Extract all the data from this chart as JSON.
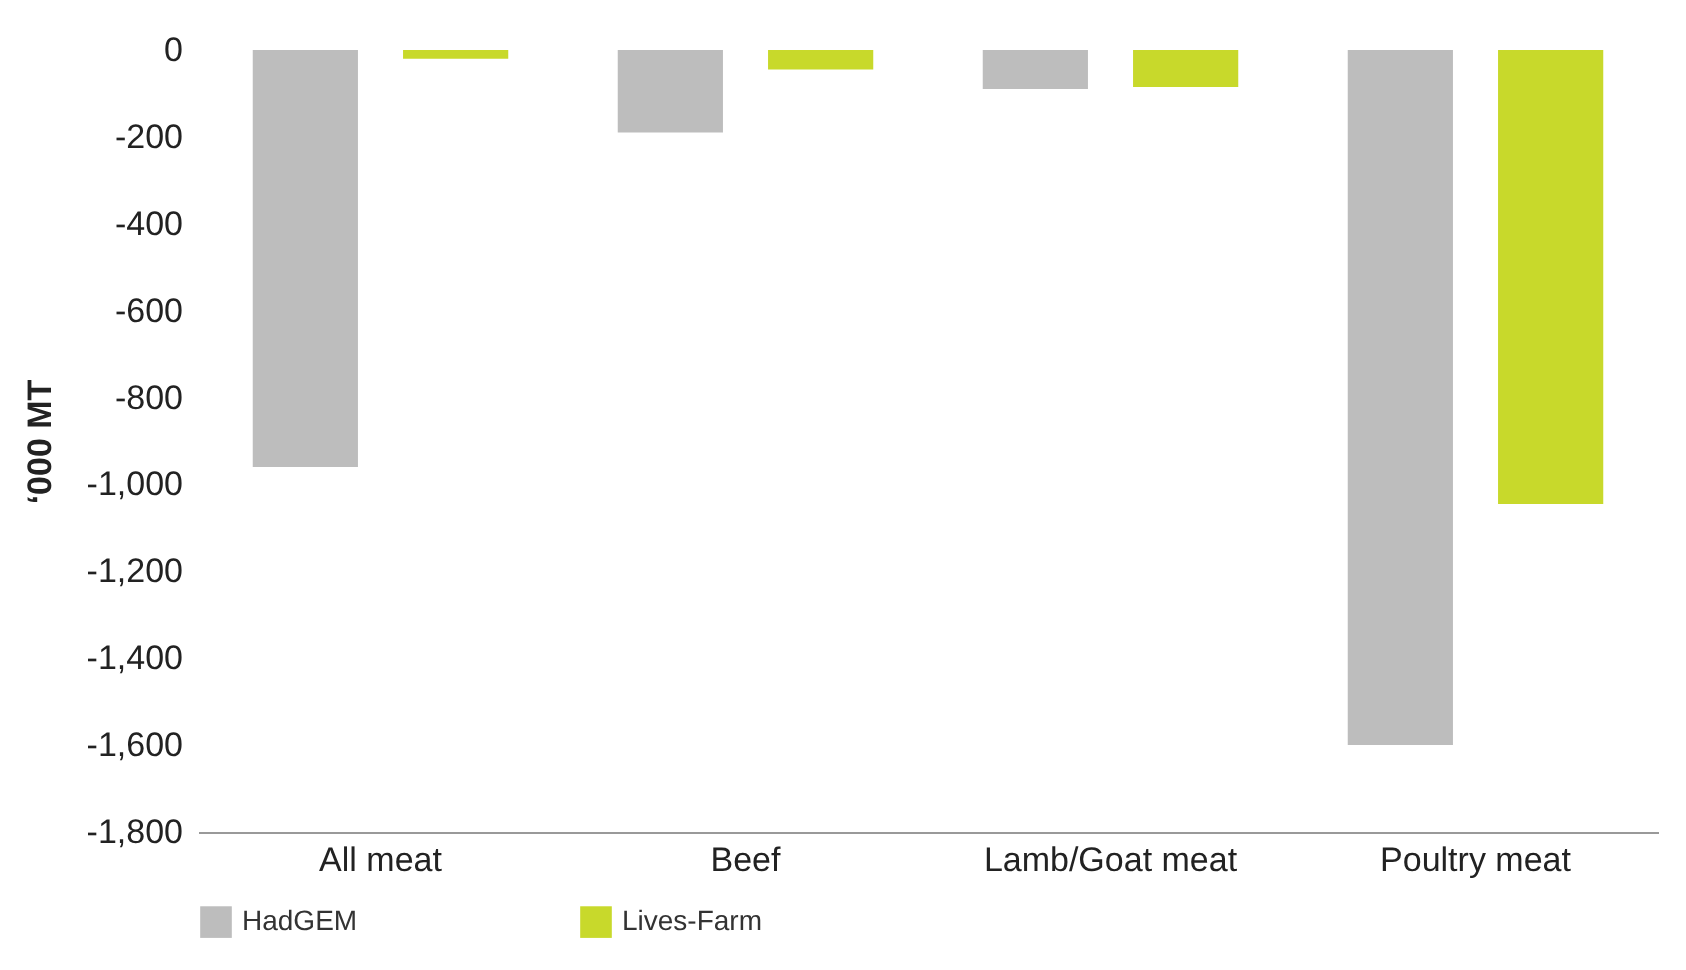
{
  "chart_data": {
    "type": "bar",
    "ylabel": "‘000 MT",
    "categories": [
      "All meat",
      "Beef",
      "Lamb/Goat meat",
      "Poultry meat"
    ],
    "series": [
      {
        "name": "HadGEM",
        "color": "#bdbdbd",
        "values": [
          -960,
          -190,
          -90,
          -1600
        ]
      },
      {
        "name": "Lives-Farm",
        "color": "#c8d92b",
        "values": [
          -20,
          -45,
          -85,
          -1045
        ]
      }
    ],
    "ylim": [
      -1800,
      0
    ],
    "yticks": [
      {
        "value": -1800,
        "label": "-1,800"
      },
      {
        "value": -1600,
        "label": "-1,600"
      },
      {
        "value": -1400,
        "label": "-1,400"
      },
      {
        "value": -1200,
        "label": "-1,200"
      },
      {
        "value": -1000,
        "label": "-1,000"
      },
      -800,
      -600,
      -400,
      -200,
      0
    ],
    "grid": false,
    "legend": "bottom"
  }
}
